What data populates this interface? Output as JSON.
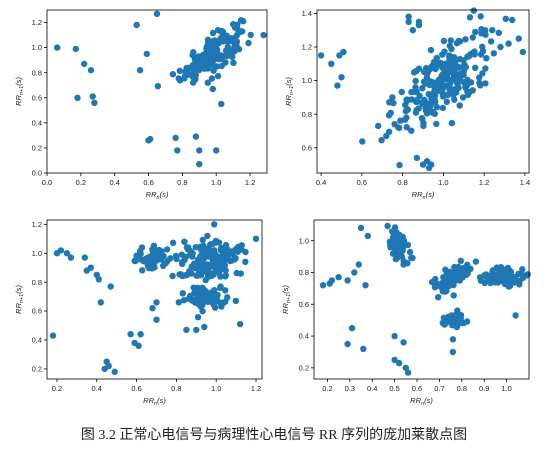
{
  "caption": "图 3.2   正常心电信号与病理性心电信号 RR 序列的庞加莱散点图",
  "colors": {
    "marker": "#1f77b4",
    "axis": "#000000",
    "text": "#222222"
  },
  "chart_data": [
    {
      "type": "scatter",
      "xlabel": "RRn(s)",
      "ylabel": "RRn+1(s)",
      "xlim": [
        0.0,
        1.3
      ],
      "ylim": [
        0.0,
        1.3
      ],
      "xticks": [
        0.0,
        0.2,
        0.4,
        0.6,
        0.8,
        1.0,
        1.2
      ],
      "yticks": [
        0.0,
        0.2,
        0.4,
        0.6,
        0.8,
        1.0,
        1.2
      ],
      "tick_labels_x": [
        "0.0",
        "0.2",
        "0.4",
        "0.6",
        "0.8",
        "1.0",
        "1.2"
      ],
      "tick_labels_y": [
        "0.0",
        "0.2",
        "0.4",
        "0.6",
        "0.8",
        "1.0",
        "1.2"
      ],
      "clusters": [
        {
          "center": [
            0.97,
            0.95
          ],
          "spread": [
            0.09,
            0.07
          ],
          "count": 160,
          "slope": 0.9
        }
      ],
      "points": [
        [
          0.06,
          1.0
        ],
        [
          0.17,
          0.99
        ],
        [
          0.22,
          0.87
        ],
        [
          0.26,
          0.82
        ],
        [
          0.18,
          0.6
        ],
        [
          0.27,
          0.61
        ],
        [
          0.28,
          0.56
        ],
        [
          0.53,
          1.18
        ],
        [
          0.59,
          0.95
        ],
        [
          0.65,
          1.27
        ],
        [
          0.55,
          0.82
        ],
        [
          0.61,
          0.27
        ],
        [
          0.6,
          0.26
        ],
        [
          0.76,
          0.28
        ],
        [
          0.77,
          0.18
        ],
        [
          0.88,
          0.29
        ],
        [
          0.9,
          0.18
        ],
        [
          0.9,
          0.07
        ],
        [
          1.0,
          0.18
        ],
        [
          1.03,
          0.55
        ],
        [
          0.98,
          0.67
        ],
        [
          1.12,
          1.02
        ],
        [
          1.28,
          1.1
        ],
        [
          0.95,
          0.72
        ],
        [
          0.88,
          0.78
        ]
      ]
    },
    {
      "type": "scatter",
      "xlabel": "RRn(s)",
      "ylabel": "RRn+1(s)",
      "xlim": [
        0.38,
        1.42
      ],
      "ylim": [
        0.45,
        1.42
      ],
      "xticks": [
        0.4,
        0.6,
        0.8,
        1.0,
        1.2,
        1.4
      ],
      "yticks": [
        0.6,
        0.8,
        1.0,
        1.2,
        1.4
      ],
      "tick_labels_x": [
        "0.4",
        "0.6",
        "0.8",
        "1.0",
        "1.2",
        "1.4"
      ],
      "tick_labels_y": [
        "0.6",
        "0.8",
        "1.0",
        "1.2",
        "1.4"
      ],
      "clusters": [
        {
          "center": [
            1.0,
            1.0
          ],
          "spread": [
            0.12,
            0.11
          ],
          "count": 230,
          "slope": 0.8
        }
      ],
      "points": [
        [
          0.4,
          1.15
        ],
        [
          0.45,
          1.1
        ],
        [
          0.49,
          1.15
        ],
        [
          0.48,
          0.97
        ],
        [
          0.5,
          1.02
        ],
        [
          0.51,
          1.17
        ],
        [
          0.83,
          1.38
        ],
        [
          0.83,
          1.35
        ],
        [
          0.85,
          1.3
        ],
        [
          0.88,
          1.35
        ],
        [
          0.88,
          1.33
        ],
        [
          0.87,
          0.54
        ],
        [
          0.9,
          0.5
        ],
        [
          0.93,
          0.48
        ],
        [
          0.92,
          0.52
        ],
        [
          0.94,
          0.5
        ],
        [
          1.37,
          1.25
        ],
        [
          1.39,
          1.17
        ],
        [
          1.32,
          1.22
        ],
        [
          0.72,
          0.67
        ],
        [
          0.68,
          0.73
        ],
        [
          1.24,
          1.3
        ],
        [
          1.28,
          1.2
        ],
        [
          0.75,
          0.9
        ]
      ]
    },
    {
      "type": "scatter",
      "xlabel": "RRn(s)",
      "ylabel": "RRn+1(s)",
      "xlim": [
        0.15,
        1.23
      ],
      "ylim": [
        0.13,
        1.23
      ],
      "xticks": [
        0.2,
        0.4,
        0.6,
        0.8,
        1.0,
        1.2
      ],
      "yticks": [
        0.2,
        0.4,
        0.6,
        0.8,
        1.0,
        1.2
      ],
      "tick_labels_x": [
        "0.2",
        "0.4",
        "0.6",
        "0.8",
        "1.0",
        "1.2"
      ],
      "tick_labels_y": [
        "0.2",
        "0.4",
        "0.6",
        "0.8",
        "1.0",
        "1.2"
      ],
      "clusters": [
        {
          "center": [
            0.69,
            0.97
          ],
          "spread": [
            0.05,
            0.04
          ],
          "count": 70,
          "slope": 0.0
        },
        {
          "center": [
            0.97,
            0.94
          ],
          "spread": [
            0.08,
            0.07
          ],
          "count": 160,
          "slope": 0.3
        },
        {
          "center": [
            0.97,
            0.69
          ],
          "spread": [
            0.06,
            0.04
          ],
          "count": 70,
          "slope": 0.0
        }
      ],
      "points": [
        [
          0.2,
          1.0
        ],
        [
          0.22,
          1.02
        ],
        [
          0.25,
          1.0
        ],
        [
          0.27,
          0.97
        ],
        [
          0.34,
          0.97
        ],
        [
          0.35,
          0.88
        ],
        [
          0.37,
          0.9
        ],
        [
          0.4,
          0.85
        ],
        [
          0.41,
          0.82
        ],
        [
          0.47,
          0.77
        ],
        [
          0.42,
          0.66
        ],
        [
          0.18,
          0.43
        ],
        [
          0.45,
          0.25
        ],
        [
          0.46,
          0.22
        ],
        [
          0.49,
          0.18
        ],
        [
          0.44,
          0.2
        ],
        [
          0.57,
          0.44
        ],
        [
          0.59,
          0.38
        ],
        [
          0.61,
          0.36
        ],
        [
          0.62,
          0.44
        ],
        [
          0.68,
          0.62
        ],
        [
          0.7,
          0.54
        ],
        [
          0.7,
          0.66
        ],
        [
          0.85,
          0.47
        ],
        [
          0.9,
          0.47
        ],
        [
          0.94,
          0.49
        ],
        [
          0.99,
          1.2
        ],
        [
          1.12,
          0.51
        ],
        [
          1.2,
          1.1
        ],
        [
          0.84,
          1.08
        ]
      ]
    },
    {
      "type": "scatter",
      "xlabel": "RRn(s)",
      "ylabel": "RRn+1(s)",
      "xlim": [
        0.14,
        1.1
      ],
      "ylim": [
        0.13,
        1.13
      ],
      "xticks": [
        0.2,
        0.3,
        0.4,
        0.5,
        0.6,
        0.7,
        0.8,
        0.9,
        1.0
      ],
      "yticks": [
        0.2,
        0.4,
        0.6,
        0.8,
        1.0
      ],
      "tick_labels_x": [
        "0.2",
        "0.3",
        "0.4",
        "0.5",
        "0.6",
        "0.7",
        "0.8",
        "0.9",
        "1.0"
      ],
      "tick_labels_y": [
        "0.2",
        "0.4",
        "0.6",
        "0.8",
        "1.0"
      ],
      "clusters": [
        {
          "center": [
            0.51,
            0.97
          ],
          "spread": [
            0.025,
            0.05
          ],
          "count": 70,
          "slope": -1.2
        },
        {
          "center": [
            0.76,
            0.77
          ],
          "spread": [
            0.04,
            0.035
          ],
          "count": 80,
          "slope": 0.7
        },
        {
          "center": [
            0.98,
            0.77
          ],
          "spread": [
            0.05,
            0.025
          ],
          "count": 80,
          "slope": 0.0
        },
        {
          "center": [
            0.76,
            0.5
          ],
          "spread": [
            0.03,
            0.02
          ],
          "count": 45,
          "slope": 0.0
        }
      ],
      "points": [
        [
          0.18,
          0.72
        ],
        [
          0.21,
          0.73
        ],
        [
          0.22,
          0.75
        ],
        [
          0.25,
          0.77
        ],
        [
          0.29,
          0.75
        ],
        [
          0.32,
          0.8
        ],
        [
          0.34,
          0.85
        ],
        [
          0.37,
          0.72
        ],
        [
          0.35,
          1.08
        ],
        [
          0.38,
          1.03
        ],
        [
          0.29,
          0.35
        ],
        [
          0.31,
          0.45
        ],
        [
          0.36,
          0.32
        ],
        [
          0.5,
          0.25
        ],
        [
          0.5,
          0.4
        ],
        [
          0.52,
          0.23
        ],
        [
          0.54,
          0.36
        ],
        [
          0.56,
          0.17
        ],
        [
          0.55,
          0.2
        ],
        [
          0.76,
          0.38
        ],
        [
          0.76,
          0.3
        ],
        [
          0.78,
          0.56
        ],
        [
          1.04,
          0.53
        ],
        [
          1.07,
          0.82
        ]
      ]
    }
  ]
}
